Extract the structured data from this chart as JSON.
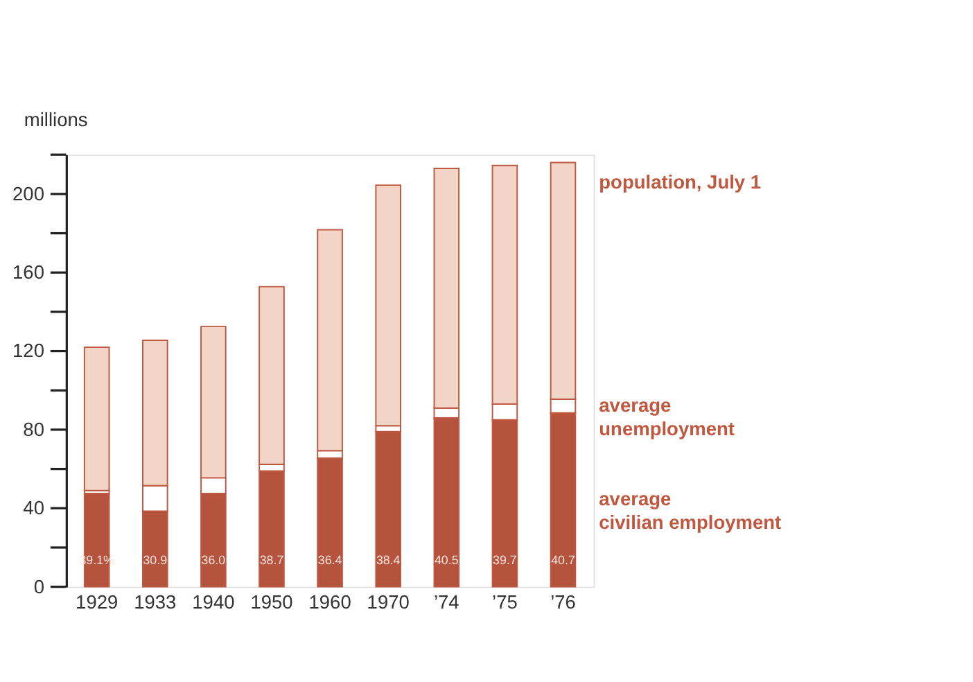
{
  "chart_data": {
    "type": "bar",
    "stacked": true,
    "ylabel": "millions",
    "categories": [
      "1929",
      "1933",
      "1940",
      "1950",
      "1960",
      "1970",
      "’74",
      "’75",
      "’76"
    ],
    "series": [
      {
        "name": "average civilian employment",
        "color": "#b5533f",
        "values": [
          47.5,
          38.5,
          47.5,
          59,
          65.5,
          79,
          86,
          85,
          88.5
        ]
      },
      {
        "name": "average unemployment",
        "color": "#ffffff",
        "values": [
          1.5,
          13,
          8,
          3.3,
          3.8,
          3,
          5,
          8,
          7
        ]
      },
      {
        "name": "population, July 1",
        "color": "#f3d5c8",
        "values": [
          73,
          74,
          77,
          90.5,
          112.5,
          122.5,
          122,
          121.5,
          120.5
        ]
      }
    ],
    "ylim": [
      0,
      220
    ],
    "yticks": [
      0,
      {
        "value": 20,
        "label": null
      },
      40,
      {
        "value": 60,
        "label": null
      },
      80,
      {
        "value": 100,
        "label": null
      },
      120,
      {
        "value": 140,
        "label": null
      },
      160,
      {
        "value": 180,
        "label": null
      },
      200,
      {
        "value": 220,
        "label": null
      }
    ],
    "grid": false,
    "legend": false,
    "annotations": [
      "39.1%",
      "30.9",
      "36.0",
      "38.7",
      "36.4",
      "38.4",
      "40.5",
      "39.7",
      "40.7"
    ]
  }
}
